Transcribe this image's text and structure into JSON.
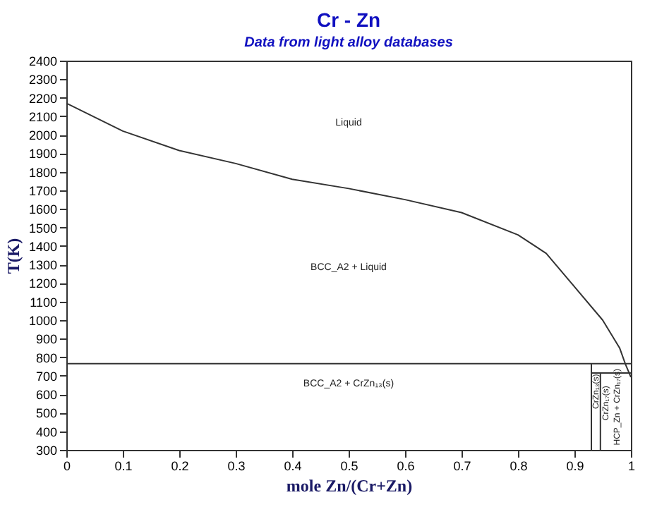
{
  "chart_data": {
    "type": "line",
    "title": "Cr - Zn",
    "subtitle": "Data from light alloy databases",
    "xlabel": "mole Zn/(Cr+Zn)",
    "ylabel": "T(K)",
    "xlim": [
      0,
      1
    ],
    "xticks": [
      0,
      0.1,
      0.2,
      0.3,
      0.4,
      0.5,
      0.6,
      0.7,
      0.8,
      0.9,
      1
    ],
    "ylim": [
      300,
      2400
    ],
    "yticks": [
      300,
      400,
      500,
      600,
      700,
      800,
      900,
      1000,
      1100,
      1200,
      1300,
      1400,
      1500,
      1600,
      1700,
      1800,
      1900,
      2000,
      2100,
      2200,
      2300,
      2400
    ],
    "grid": false,
    "marker": "none",
    "line_style": "solid",
    "series": [
      {
        "color": "#333333",
        "x": [
          0,
          0.1,
          0.2,
          0.3,
          0.4,
          0.5,
          0.6,
          0.7,
          0.8,
          0.85,
          0.9,
          0.95,
          0.98,
          0.99,
          1.0
        ],
        "values": [
          2170,
          2020,
          1915,
          1845,
          1760,
          1710,
          1650,
          1580,
          1460,
          1360,
          1180,
          1000,
          850,
          765,
          692
        ]
      },
      {
        "color": "#333333",
        "x": [
          0.93,
          0.93
        ],
        "values": [
          300,
          765
        ]
      },
      {
        "color": "#333333",
        "x": [
          0.946,
          0.946
        ],
        "values": [
          300,
          715
        ]
      },
      {
        "color": "#333333",
        "x": [
          0.93,
          1.0
        ],
        "values": [
          715,
          715
        ]
      }
    ],
    "ref_lines": [
      {
        "axis": "y",
        "value": 765,
        "color": "#333333"
      }
    ],
    "annotations": [
      "Liquid",
      "BCC_A2 + Liquid",
      "BCC_A2 + CrZn₁₃(s)",
      "CrZn₁₃(s)",
      "CrZn₁₇(s)",
      "HCP_Zn + CrZn₁₇(s)"
    ]
  }
}
